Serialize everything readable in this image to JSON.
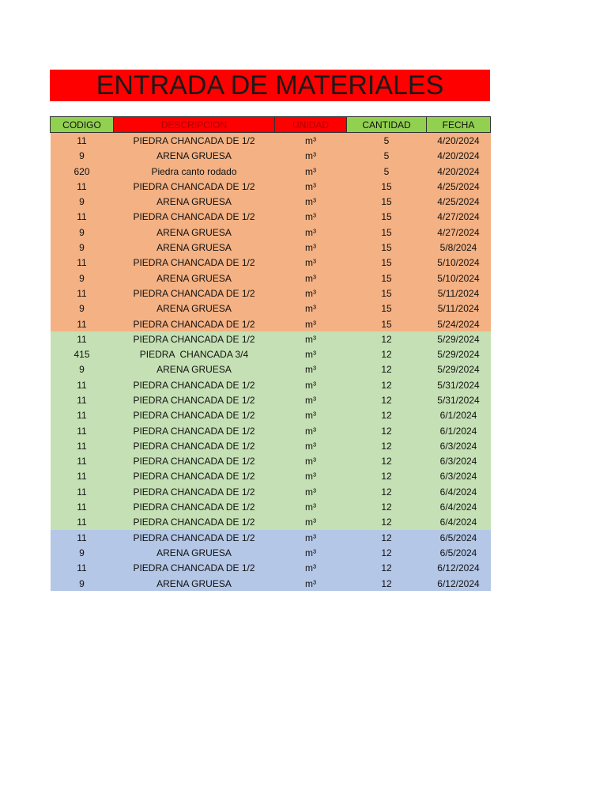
{
  "title": "ENTRADA DE MATERIALES",
  "table": {
    "header": [
      "CODIGO",
      "DESCRIPCION",
      "UNIDAD",
      "CANTIDAD",
      "FECHA"
    ],
    "groups": [
      {
        "color": "#f4b183",
        "rows": [
          [
            11,
            "PIEDRA CHANCADA DE 1/2",
            "m³",
            5,
            "4/20/2024"
          ],
          [
            9,
            "ARENA GRUESA",
            "m³",
            5,
            "4/20/2024"
          ],
          [
            620,
            "Piedra canto rodado",
            "m³",
            5,
            "4/20/2024"
          ],
          [
            11,
            "PIEDRA CHANCADA DE 1/2",
            "m³",
            15,
            "4/25/2024"
          ],
          [
            9,
            "ARENA GRUESA",
            "m³",
            15,
            "4/25/2024"
          ],
          [
            11,
            "PIEDRA CHANCADA DE 1/2",
            "m³",
            15,
            "4/27/2024"
          ],
          [
            9,
            "ARENA GRUESA",
            "m³",
            15,
            "4/27/2024"
          ],
          [
            9,
            "ARENA GRUESA",
            "m³",
            15,
            "5/8/2024"
          ],
          [
            11,
            "PIEDRA CHANCADA DE 1/2",
            "m³",
            15,
            "5/10/2024"
          ],
          [
            9,
            "ARENA GRUESA",
            "m³",
            15,
            "5/10/2024"
          ],
          [
            11,
            "PIEDRA CHANCADA DE 1/2",
            "m³",
            15,
            "5/11/2024"
          ],
          [
            9,
            "ARENA GRUESA",
            "m³",
            15,
            "5/11/2024"
          ],
          [
            11,
            "PIEDRA CHANCADA DE 1/2",
            "m³",
            15,
            "5/24/2024"
          ]
        ]
      },
      {
        "color": "#c5e0b4",
        "rows": [
          [
            11,
            "PIEDRA CHANCADA DE 1/2",
            "m³",
            12,
            "5/29/2024"
          ],
          [
            415,
            "PIEDRA  CHANCADA 3/4",
            "m³",
            12,
            "5/29/2024"
          ],
          [
            9,
            "ARENA GRUESA",
            "m³",
            12,
            "5/29/2024"
          ],
          [
            11,
            "PIEDRA CHANCADA DE 1/2",
            "m³",
            12,
            "5/31/2024"
          ],
          [
            11,
            "PIEDRA CHANCADA DE 1/2",
            "m³",
            12,
            "5/31/2024"
          ],
          [
            11,
            "PIEDRA CHANCADA DE 1/2",
            "m³",
            12,
            "6/1/2024"
          ],
          [
            11,
            "PIEDRA CHANCADA DE 1/2",
            "m³",
            12,
            "6/1/2024"
          ],
          [
            11,
            "PIEDRA CHANCADA DE 1/2",
            "m³",
            12,
            "6/3/2024"
          ],
          [
            11,
            "PIEDRA CHANCADA DE 1/2",
            "m³",
            12,
            "6/3/2024"
          ],
          [
            11,
            "PIEDRA CHANCADA DE 1/2",
            "m³",
            12,
            "6/3/2024"
          ],
          [
            11,
            "PIEDRA CHANCADA DE 1/2",
            "m³",
            12,
            "6/4/2024"
          ],
          [
            11,
            "PIEDRA CHANCADA DE 1/2",
            "m³",
            12,
            "6/4/2024"
          ],
          [
            11,
            "PIEDRA CHANCADA DE 1/2",
            "m³",
            12,
            "6/4/2024"
          ]
        ]
      },
      {
        "color": "#b4c7e7",
        "rows": [
          [
            11,
            "PIEDRA CHANCADA DE 1/2",
            "m³",
            12,
            "6/5/2024"
          ],
          [
            9,
            "ARENA GRUESA",
            "m³",
            12,
            "6/5/2024"
          ],
          [
            11,
            "PIEDRA CHANCADA DE 1/2",
            "m³",
            12,
            "6/12/2024"
          ],
          [
            9,
            "ARENA GRUESA",
            "m³",
            12,
            "6/12/2024"
          ]
        ]
      }
    ]
  }
}
